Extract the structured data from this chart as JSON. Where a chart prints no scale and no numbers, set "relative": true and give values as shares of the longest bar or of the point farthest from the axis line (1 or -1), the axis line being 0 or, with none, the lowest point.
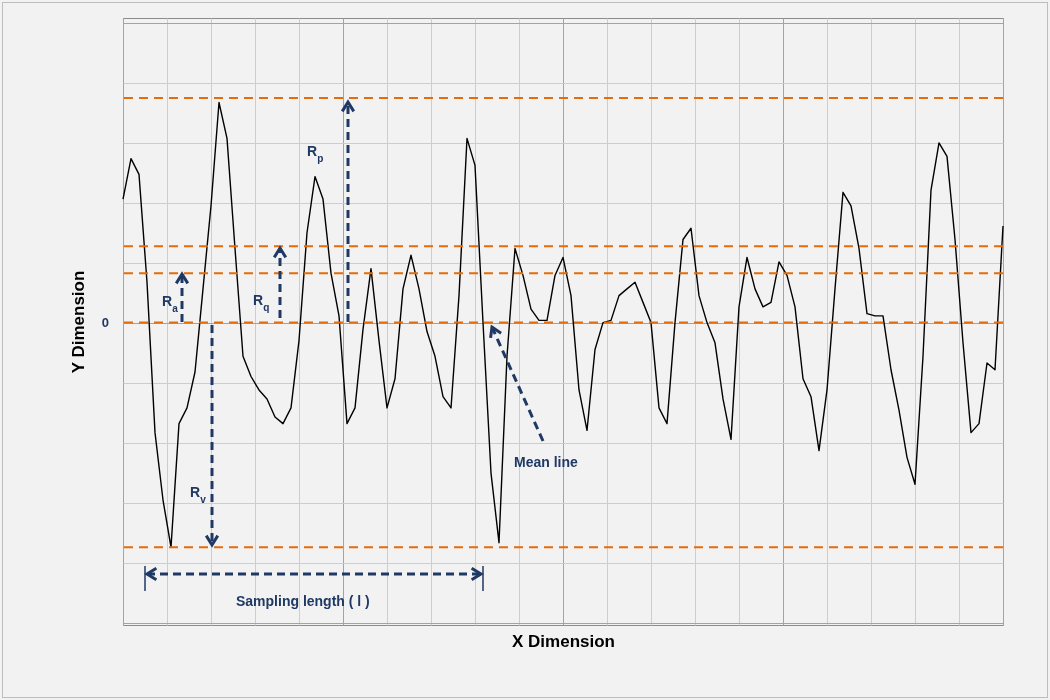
{
  "chart_data": {
    "type": "line",
    "xlabel": "X Dimension",
    "ylabel": "Y Dimension",
    "relative": true,
    "grid": true,
    "categories": [
      null,
      null,
      null,
      null,
      null,
      null,
      null,
      null,
      null,
      null,
      null,
      null,
      null,
      null,
      null,
      null,
      null,
      null,
      null,
      null,
      null,
      null,
      null,
      null,
      null,
      null,
      null,
      null,
      null,
      null,
      null,
      null,
      null,
      null,
      null,
      null,
      null,
      null,
      null,
      null,
      null,
      null,
      null,
      null,
      null,
      null,
      null,
      null,
      null,
      null,
      null,
      null,
      null,
      null,
      null,
      null,
      null,
      null,
      null,
      null,
      null,
      null,
      null,
      null,
      null,
      null,
      null,
      null,
      null,
      null,
      null,
      null,
      null,
      null,
      null,
      null,
      null,
      null,
      null,
      null,
      null,
      null,
      null,
      null,
      null,
      null,
      null,
      null,
      null,
      null,
      null,
      null,
      null,
      null,
      null,
      null,
      null,
      null,
      null,
      null,
      null,
      null,
      null,
      null,
      null,
      null,
      null,
      null,
      null,
      null,
      null
    ],
    "series": [
      {
        "color": "#000000",
        "values": [
          0.55,
          0.73,
          0.66,
          0.18,
          -0.49,
          -0.79,
          -1.0,
          -0.45,
          -0.38,
          -0.22,
          0.15,
          0.52,
          0.98,
          0.82,
          0.33,
          -0.15,
          -0.24,
          -0.3,
          -0.34,
          -0.42,
          -0.45,
          -0.38,
          -0.08,
          0.4,
          0.65,
          0.55,
          0.22,
          0.03,
          -0.45,
          -0.38,
          -0.03,
          0.24,
          -0.08,
          -0.38,
          -0.25,
          0.15,
          0.3,
          0.15,
          -0.04,
          -0.15,
          -0.33,
          -0.38,
          0.12,
          0.82,
          0.7,
          0.0,
          -0.67,
          -0.98,
          -0.15,
          0.33,
          0.21,
          0.06,
          0.01,
          0.01,
          0.21,
          0.29,
          0.12,
          -0.3,
          -0.48,
          -0.12,
          0.0,
          0.01,
          0.12,
          0.15,
          0.18,
          0.09,
          0.0,
          -0.38,
          -0.45,
          0.0,
          0.37,
          0.42,
          0.12,
          0.0,
          -0.09,
          -0.34,
          -0.52,
          0.07,
          0.29,
          0.15,
          0.07,
          0.09,
          0.27,
          0.21,
          0.07,
          -0.25,
          -0.33,
          -0.57,
          -0.3,
          0.15,
          0.58,
          0.52,
          0.33,
          0.04,
          0.03,
          0.03,
          -0.21,
          -0.39,
          -0.6,
          -0.72,
          -0.15,
          0.59,
          0.8,
          0.74,
          0.37,
          -0.09,
          -0.49,
          -0.45,
          -0.18,
          -0.21,
          0.43
        ]
      }
    ],
    "ref_lines": [
      {
        "axis": "y",
        "value": 1.0,
        "label": null,
        "color": "#e46c0a",
        "line_style": "dashed"
      },
      {
        "axis": "y",
        "value": 0.34,
        "label": null,
        "color": "#e46c0a",
        "line_style": "dashed"
      },
      {
        "axis": "y",
        "value": 0.22,
        "label": null,
        "color": "#e46c0a",
        "line_style": "dashed"
      },
      {
        "axis": "y",
        "value": 0,
        "label": "0",
        "color": "#e46c0a",
        "line_style": "dashed"
      },
      {
        "axis": "y",
        "value": -1.0,
        "label": null,
        "color": "#e46c0a",
        "line_style": "dashed"
      }
    ],
    "annotations": [
      "R$_{p}$",
      "R$_{q}$",
      "R$_{a}$",
      "R$_{v}$",
      "Mean line",
      "Sampling length ( l )"
    ]
  }
}
